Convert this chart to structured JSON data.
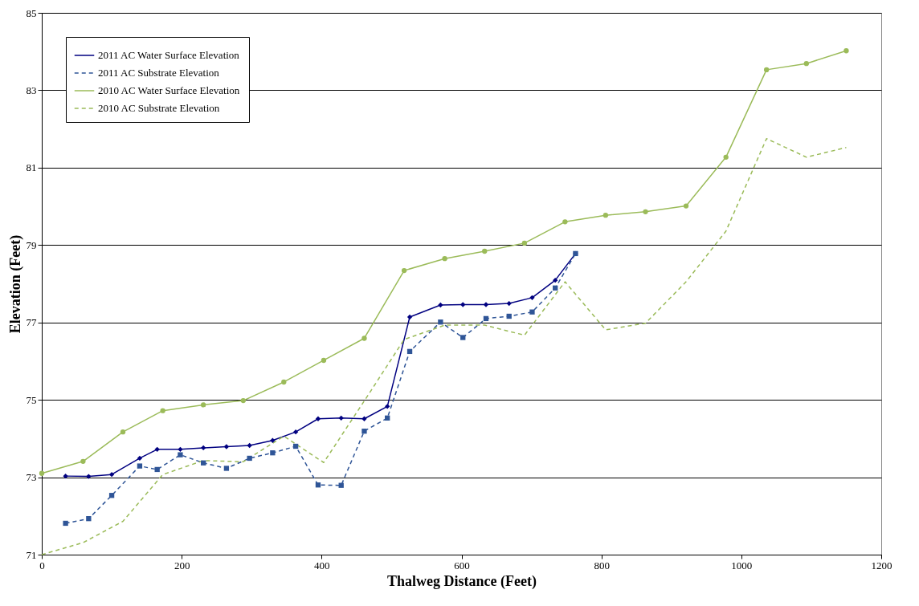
{
  "chart_data": {
    "type": "line",
    "xlabel": "Thalweg Distance (Feet)",
    "ylabel": "Elevation (Feet)",
    "xlim": [
      0,
      1200
    ],
    "xticks": [
      0,
      200,
      400,
      600,
      800,
      1000,
      1200
    ],
    "ylim": [
      71,
      85
    ],
    "yticks": [
      71,
      73,
      75,
      77,
      79,
      81,
      83,
      85
    ],
    "grid": "y",
    "legend": "top left",
    "series": [
      {
        "name": "2011 AC Water Surface Elevation",
        "color": "#000080",
        "marker": "diamond",
        "line_style": "solid",
        "x": [
          34,
          67,
          100,
          140,
          165,
          198,
          231,
          264,
          297,
          330,
          363,
          395,
          428,
          461,
          494,
          526,
          570,
          602,
          635,
          668,
          701,
          734,
          763
        ],
        "values": [
          73.03,
          73.02,
          73.07,
          73.49,
          73.72,
          73.72,
          73.76,
          73.79,
          73.82,
          73.95,
          74.17,
          74.51,
          74.53,
          74.51,
          74.83,
          77.14,
          77.45,
          77.46,
          77.46,
          77.49,
          77.64,
          78.09,
          78.78
        ]
      },
      {
        "name": "2011 AC Substrate Elevation",
        "color": "#2f5597",
        "marker": "square",
        "line_style": "dashed",
        "x": [
          34,
          67,
          100,
          140,
          165,
          198,
          231,
          264,
          297,
          330,
          363,
          395,
          428,
          461,
          494,
          526,
          570,
          602,
          635,
          668,
          701,
          734,
          763
        ],
        "values": [
          71.81,
          71.93,
          72.53,
          73.29,
          73.2,
          73.58,
          73.37,
          73.23,
          73.49,
          73.63,
          73.8,
          72.8,
          72.79,
          74.19,
          74.53,
          76.25,
          77.01,
          76.61,
          77.1,
          77.16,
          77.27,
          77.89,
          78.78
        ]
      },
      {
        "name": "2010 AC Water Surface Elevation",
        "color": "#9bbb59",
        "marker": "circle",
        "line_style": "solid",
        "x": [
          0,
          59,
          116,
          173,
          231,
          288,
          346,
          403,
          461,
          518,
          576,
          633,
          690,
          748,
          806,
          863,
          921,
          978,
          1036,
          1093,
          1150
        ],
        "values": [
          73.1,
          73.41,
          74.17,
          74.72,
          74.87,
          74.98,
          75.46,
          76.02,
          76.59,
          78.34,
          78.65,
          78.84,
          79.05,
          79.6,
          79.77,
          79.86,
          80.01,
          81.27,
          83.53,
          83.69,
          84.02
        ]
      },
      {
        "name": "2010 AC Substrate Elevation",
        "color": "#9bbb59",
        "marker": "none",
        "line_style": "dashed",
        "x": [
          0,
          59,
          116,
          173,
          231,
          288,
          346,
          403,
          461,
          518,
          576,
          633,
          690,
          748,
          806,
          863,
          921,
          978,
          1036,
          1093,
          1150
        ],
        "values": [
          71.0,
          71.31,
          71.86,
          73.07,
          73.43,
          73.4,
          74.06,
          73.38,
          74.97,
          76.56,
          76.93,
          76.93,
          76.67,
          78.05,
          76.81,
          76.98,
          78.05,
          79.36,
          81.75,
          81.27,
          81.52
        ]
      }
    ]
  }
}
